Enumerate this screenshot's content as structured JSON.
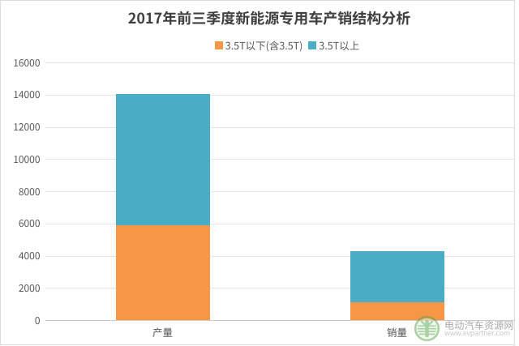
{
  "chart_data": {
    "type": "bar",
    "stacked": true,
    "title": "2017年前三季度新能源专用车产销结构分析",
    "categories": [
      "产量",
      "销量"
    ],
    "category_keys": [
      "production",
      "sales"
    ],
    "series": [
      {
        "name": "3.5T以下(含3.5T)",
        "key": "up-to-3-5t",
        "color": "#F79646",
        "values": [
          5900,
          1150
        ]
      },
      {
        "name": "3.5T以上",
        "key": "above-3-5t",
        "color": "#4BACC6",
        "values": [
          8150,
          3150
        ]
      }
    ],
    "xlabel": "",
    "ylabel": "",
    "ylim": [
      0,
      16000
    ],
    "ytick_step": 2000,
    "ytick_labels": [
      "0",
      "2000",
      "4000",
      "6000",
      "8000",
      "10000",
      "12000",
      "14000",
      "16000"
    ],
    "grid": true,
    "legend_position": "top-center",
    "totals": [
      14050,
      4300
    ]
  },
  "watermark": {
    "site_name": "电动汽车资源网",
    "url_text": "www.evpartner.com",
    "logo": "evpartner-green-seal"
  },
  "colors": {
    "background": "#ffffff",
    "frame_border": "#dcdcdc",
    "title_text": "#3f3f3f",
    "label_text": "#595959",
    "gridline": "#e4e4e4",
    "axis_line": "#cdc9c1",
    "series_orange": "#F79646",
    "series_blue": "#4BACC6",
    "watermark_text": "#a9a9a9",
    "watermark_url": "#c8c8c8",
    "logo_green": "#58a449"
  }
}
